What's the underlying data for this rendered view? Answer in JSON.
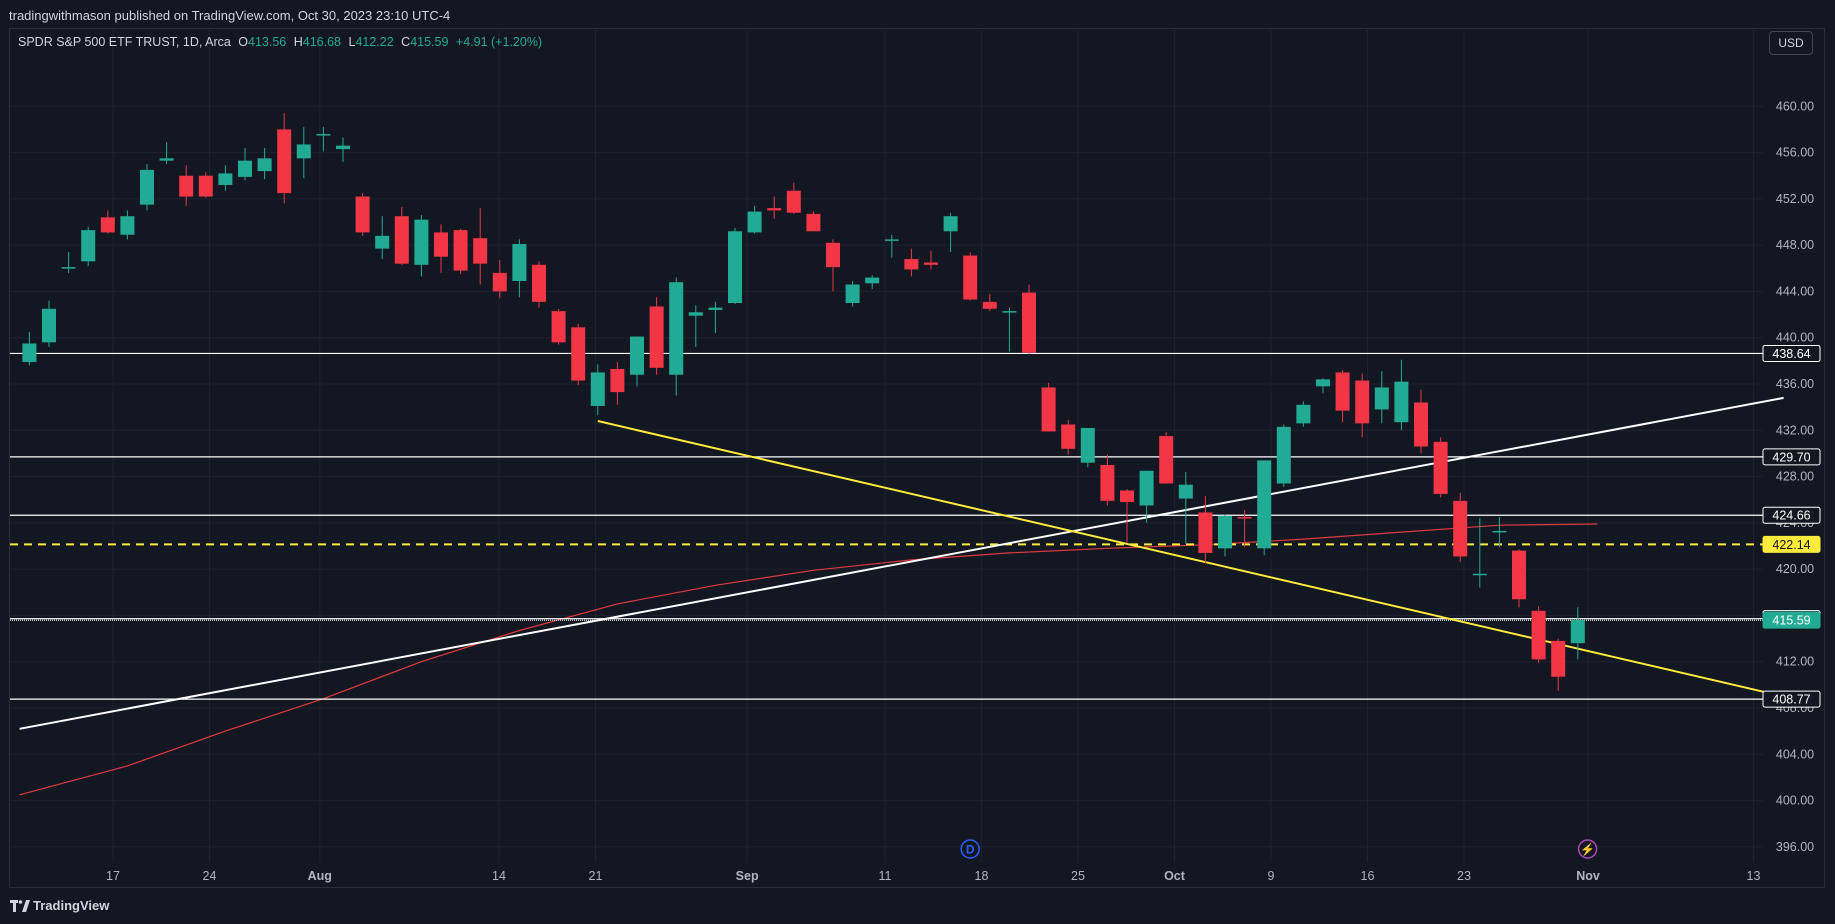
{
  "header": {
    "published": "tradingwithmason published on TradingView.com, Oct 30, 2023 23:10 UTC-4"
  },
  "legend": {
    "symbol": "SPDR S&P 500 ETF TRUST, 1D, Arca",
    "o_label": "O",
    "o": "413.56",
    "h_label": "H",
    "h": "416.68",
    "l_label": "L",
    "l": "412.22",
    "c_label": "C",
    "c": "415.59",
    "change": "+4.91 (+1.20%)"
  },
  "currency_button": "USD",
  "footer": {
    "brand": "TradingView"
  },
  "colors": {
    "background": "#131722",
    "up": "#22ab94",
    "down": "#f23645",
    "grid": "#1e222d",
    "trend_white": "#ffffff",
    "trend_yellow": "#ffeb3b",
    "ma": "#e03a3e"
  },
  "chart_data": {
    "type": "candlestick",
    "symbol": "SPY",
    "interval": "1D",
    "ylim": [
      394,
      464
    ],
    "y_ticks": [
      "396.00",
      "400.00",
      "404.00",
      "408.00",
      "412.00",
      "416.00",
      "420.00",
      "424.00",
      "428.00",
      "432.00",
      "436.00",
      "440.00",
      "444.00",
      "448.00",
      "452.00",
      "456.00",
      "460.00"
    ],
    "x_ticks": [
      {
        "label": "17",
        "date": "2023-07-17"
      },
      {
        "label": "24",
        "date": "2023-07-24"
      },
      {
        "label": "Aug",
        "date": "2023-08-01"
      },
      {
        "label": "14",
        "date": "2023-08-14"
      },
      {
        "label": "21",
        "date": "2023-08-21"
      },
      {
        "label": "Sep",
        "date": "2023-09-01"
      },
      {
        "label": "11",
        "date": "2023-09-11"
      },
      {
        "label": "18",
        "date": "2023-09-18"
      },
      {
        "label": "25",
        "date": "2023-09-25"
      },
      {
        "label": "Oct",
        "date": "2023-10-02"
      },
      {
        "label": "9",
        "date": "2023-10-09"
      },
      {
        "label": "16",
        "date": "2023-10-16"
      },
      {
        "label": "23",
        "date": "2023-10-23"
      },
      {
        "label": "Nov",
        "date": "2023-11-01"
      },
      {
        "label": "13",
        "date": "2023-11-13"
      }
    ],
    "candles": [
      {
        "o": 437.9,
        "h": 440.5,
        "l": 437.6,
        "c": 439.5
      },
      {
        "o": 439.6,
        "h": 443.2,
        "l": 439.2,
        "c": 442.5
      },
      {
        "o": 446.0,
        "h": 447.4,
        "l": 445.6,
        "c": 446.1
      },
      {
        "o": 446.6,
        "h": 449.6,
        "l": 446.2,
        "c": 449.3
      },
      {
        "o": 450.4,
        "h": 451.0,
        "l": 449.0,
        "c": 449.1
      },
      {
        "o": 448.9,
        "h": 451.0,
        "l": 448.5,
        "c": 450.5
      },
      {
        "o": 451.5,
        "h": 455.0,
        "l": 451.0,
        "c": 454.5
      },
      {
        "o": 455.3,
        "h": 456.9,
        "l": 455.0,
        "c": 455.5
      },
      {
        "o": 454.0,
        "h": 454.9,
        "l": 451.4,
        "c": 452.2
      },
      {
        "o": 454.0,
        "h": 454.3,
        "l": 452.1,
        "c": 452.2
      },
      {
        "o": 453.2,
        "h": 454.9,
        "l": 452.7,
        "c": 454.2
      },
      {
        "o": 453.9,
        "h": 456.4,
        "l": 453.6,
        "c": 455.3
      },
      {
        "o": 454.4,
        "h": 456.4,
        "l": 453.7,
        "c": 455.5
      },
      {
        "o": 458.0,
        "h": 459.4,
        "l": 451.6,
        "c": 452.5
      },
      {
        "o": 455.5,
        "h": 458.2,
        "l": 453.8,
        "c": 456.7
      },
      {
        "o": 457.5,
        "h": 458.2,
        "l": 456.1,
        "c": 457.6
      },
      {
        "o": 456.3,
        "h": 457.3,
        "l": 455.2,
        "c": 456.6
      },
      {
        "o": 452.2,
        "h": 452.5,
        "l": 448.8,
        "c": 449.1
      },
      {
        "o": 447.7,
        "h": 450.5,
        "l": 446.8,
        "c": 448.8
      },
      {
        "o": 450.5,
        "h": 451.3,
        "l": 446.3,
        "c": 446.4
      },
      {
        "o": 446.3,
        "h": 450.6,
        "l": 445.3,
        "c": 450.2
      },
      {
        "o": 449.1,
        "h": 449.8,
        "l": 445.6,
        "c": 447.0
      },
      {
        "o": 449.3,
        "h": 449.4,
        "l": 445.5,
        "c": 445.8
      },
      {
        "o": 448.6,
        "h": 451.2,
        "l": 444.6,
        "c": 446.4
      },
      {
        "o": 445.6,
        "h": 446.7,
        "l": 443.4,
        "c": 444.0
      },
      {
        "o": 444.9,
        "h": 448.5,
        "l": 443.5,
        "c": 448.1
      },
      {
        "o": 446.3,
        "h": 446.6,
        "l": 442.6,
        "c": 443.1
      },
      {
        "o": 442.3,
        "h": 442.5,
        "l": 439.4,
        "c": 439.6
      },
      {
        "o": 440.9,
        "h": 441.2,
        "l": 435.9,
        "c": 436.3
      },
      {
        "o": 434.1,
        "h": 437.7,
        "l": 433.3,
        "c": 437.0
      },
      {
        "o": 437.3,
        "h": 437.9,
        "l": 434.2,
        "c": 435.3
      },
      {
        "o": 436.8,
        "h": 440.1,
        "l": 435.8,
        "c": 440.1
      },
      {
        "o": 442.7,
        "h": 443.5,
        "l": 436.8,
        "c": 437.4
      },
      {
        "o": 436.8,
        "h": 445.2,
        "l": 435.0,
        "c": 444.8
      },
      {
        "o": 441.9,
        "h": 442.8,
        "l": 439.2,
        "c": 442.2
      },
      {
        "o": 442.4,
        "h": 443.1,
        "l": 440.4,
        "c": 442.6
      },
      {
        "o": 443.0,
        "h": 449.5,
        "l": 442.9,
        "c": 449.2
      },
      {
        "o": 449.1,
        "h": 451.4,
        "l": 449.0,
        "c": 450.9
      },
      {
        "o": 451.2,
        "h": 452.2,
        "l": 450.3,
        "c": 451.0
      },
      {
        "o": 452.7,
        "h": 453.4,
        "l": 450.7,
        "c": 450.8
      },
      {
        "o": 450.7,
        "h": 450.9,
        "l": 449.2,
        "c": 449.2
      },
      {
        "o": 448.2,
        "h": 448.5,
        "l": 444.0,
        "c": 446.1
      },
      {
        "o": 443.0,
        "h": 444.9,
        "l": 442.7,
        "c": 444.6
      },
      {
        "o": 444.7,
        "h": 445.4,
        "l": 444.2,
        "c": 445.2
      },
      {
        "o": 448.4,
        "h": 448.9,
        "l": 446.9,
        "c": 448.5
      },
      {
        "o": 446.8,
        "h": 447.7,
        "l": 445.3,
        "c": 445.9
      },
      {
        "o": 446.5,
        "h": 447.5,
        "l": 445.9,
        "c": 446.3
      },
      {
        "o": 449.2,
        "h": 450.8,
        "l": 447.4,
        "c": 450.5
      },
      {
        "o": 447.1,
        "h": 447.4,
        "l": 443.2,
        "c": 443.3
      },
      {
        "o": 443.1,
        "h": 443.8,
        "l": 442.3,
        "c": 442.5
      },
      {
        "o": 442.2,
        "h": 442.6,
        "l": 438.8,
        "c": 442.3
      },
      {
        "o": 443.9,
        "h": 444.6,
        "l": 438.6,
        "c": 438.7
      },
      {
        "o": 435.7,
        "h": 436.1,
        "l": 431.9,
        "c": 431.9
      },
      {
        "o": 432.5,
        "h": 432.9,
        "l": 429.9,
        "c": 430.4
      },
      {
        "o": 429.2,
        "h": 432.2,
        "l": 428.8,
        "c": 432.2
      },
      {
        "o": 429.0,
        "h": 429.9,
        "l": 425.5,
        "c": 425.9
      },
      {
        "o": 426.8,
        "h": 426.9,
        "l": 422.3,
        "c": 425.8
      },
      {
        "o": 425.5,
        "h": 428.5,
        "l": 424.0,
        "c": 428.5
      },
      {
        "o": 431.5,
        "h": 431.8,
        "l": 427.4,
        "c": 427.4
      },
      {
        "o": 426.1,
        "h": 428.4,
        "l": 422.2,
        "c": 427.3
      },
      {
        "o": 424.9,
        "h": 426.3,
        "l": 420.5,
        "c": 421.4
      },
      {
        "o": 421.8,
        "h": 424.7,
        "l": 421.1,
        "c": 424.6
      },
      {
        "o": 424.5,
        "h": 425.1,
        "l": 421.9,
        "c": 424.4
      },
      {
        "o": 421.8,
        "h": 429.0,
        "l": 421.2,
        "c": 429.4
      },
      {
        "o": 427.4,
        "h": 432.5,
        "l": 427.1,
        "c": 432.3
      },
      {
        "o": 432.6,
        "h": 434.5,
        "l": 432.3,
        "c": 434.2
      },
      {
        "o": 435.8,
        "h": 436.5,
        "l": 435.2,
        "c": 436.4
      },
      {
        "o": 437.0,
        "h": 437.2,
        "l": 432.7,
        "c": 433.7
      },
      {
        "o": 436.3,
        "h": 436.9,
        "l": 431.4,
        "c": 432.6
      },
      {
        "o": 433.8,
        "h": 437.1,
        "l": 432.6,
        "c": 435.7
      },
      {
        "o": 432.7,
        "h": 438.1,
        "l": 432.0,
        "c": 436.2
      },
      {
        "o": 434.4,
        "h": 435.5,
        "l": 430.0,
        "c": 430.6
      },
      {
        "o": 431.0,
        "h": 431.4,
        "l": 426.2,
        "c": 426.5
      },
      {
        "o": 425.9,
        "h": 426.6,
        "l": 420.6,
        "c": 421.1
      },
      {
        "o": 419.5,
        "h": 424.4,
        "l": 418.4,
        "c": 419.6
      },
      {
        "o": 423.3,
        "h": 424.5,
        "l": 421.9,
        "c": 423.3
      },
      {
        "o": 421.6,
        "h": 421.7,
        "l": 416.7,
        "c": 417.4
      },
      {
        "o": 416.4,
        "h": 416.8,
        "l": 411.9,
        "c": 412.2
      },
      {
        "o": 413.8,
        "h": 414.0,
        "l": 409.5,
        "c": 410.7
      },
      {
        "o": 413.6,
        "h": 416.7,
        "l": 412.2,
        "c": 415.6
      }
    ],
    "horizontal_levels": [
      {
        "value": 438.64,
        "label": "438.64",
        "style": "solid",
        "color": "#ffffff"
      },
      {
        "value": 429.7,
        "label": "429.70",
        "style": "solid",
        "color": "#ffffff"
      },
      {
        "value": 424.66,
        "label": "424.66",
        "style": "solid",
        "color": "#ffffff"
      },
      {
        "value": 422.14,
        "label": "422.14",
        "style": "dashed",
        "color": "#ffeb3b"
      },
      {
        "value": 415.72,
        "label": "415.72",
        "style": "solid",
        "color": "#ffffff"
      },
      {
        "value": 415.59,
        "label": "415.59",
        "style": "dotted",
        "color": "#22ab94",
        "current": true
      },
      {
        "value": 408.77,
        "label": "408.77",
        "style": "solid",
        "color": "#ffffff"
      }
    ],
    "trendlines": [
      {
        "color": "#ffffff",
        "start": {
          "bar": -0.5,
          "price": 406.2
        },
        "end": {
          "bar": 89.5,
          "price": 434.8
        }
      },
      {
        "color": "#ffeb3b",
        "start": {
          "bar": 29,
          "price": 432.8
        },
        "end": {
          "bar": 89.5,
          "price": 409.0
        }
      }
    ],
    "moving_average": {
      "color": "#e03a3e",
      "points": [
        [
          -0.5,
          400.5
        ],
        [
          5,
          403.0
        ],
        [
          10,
          406.0
        ],
        [
          15,
          408.8
        ],
        [
          20,
          412.0
        ],
        [
          25,
          414.7
        ],
        [
          30,
          417.0
        ],
        [
          35,
          418.6
        ],
        [
          40,
          419.9
        ],
        [
          45,
          420.8
        ],
        [
          50,
          421.4
        ],
        [
          55,
          421.8
        ],
        [
          60,
          422.1
        ],
        [
          65,
          422.6
        ],
        [
          70,
          423.2
        ],
        [
          75,
          423.8
        ],
        [
          80,
          423.9
        ]
      ]
    },
    "markers": [
      {
        "bar": 48,
        "symbol": "D",
        "color": "#2962ff"
      },
      {
        "bar": 79.5,
        "symbol": "⚡",
        "color": "#ab47bc"
      }
    ]
  }
}
